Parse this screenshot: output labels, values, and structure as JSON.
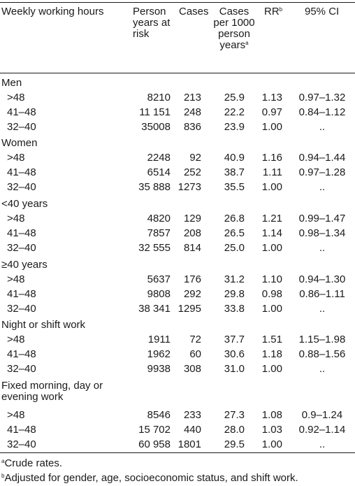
{
  "header": {
    "col1": "Weekly working hours",
    "col2": "Person years at risk",
    "col3": "Cases",
    "col4": "Cases per 1000 person years",
    "col4_note": "a",
    "col5": "RR",
    "col5_note": "b",
    "col6": "95% CI"
  },
  "groups": [
    {
      "title": "Men",
      "rows": [
        {
          "hours": ">48",
          "py": "8210",
          "cases": "213",
          "rate": "25.9",
          "rr": "1.13",
          "ci": "0.97–1.32"
        },
        {
          "hours": "41–48",
          "py": "11 151",
          "cases": "248",
          "rate": "22.2",
          "rr": "0.97",
          "ci": "0.84–1.12"
        },
        {
          "hours": "32–40",
          "py": "35008",
          "cases": "836",
          "rate": "23.9",
          "rr": "1.00",
          "ci": ".."
        }
      ]
    },
    {
      "title": "Women",
      "rows": [
        {
          "hours": ">48",
          "py": "2248",
          "cases": "92",
          "rate": "40.9",
          "rr": "1.16",
          "ci": "0.94–1.44"
        },
        {
          "hours": "41–48",
          "py": "6514",
          "cases": "252",
          "rate": "38.7",
          "rr": "1.11",
          "ci": "0.97–1.28"
        },
        {
          "hours": "32–40",
          "py": "35 888",
          "cases": "1273",
          "rate": "35.5",
          "rr": "1.00",
          "ci": ".."
        }
      ]
    },
    {
      "title": "<40 years",
      "rows": [
        {
          "hours": ">48",
          "py": "4820",
          "cases": "129",
          "rate": "26.8",
          "rr": "1.21",
          "ci": "0.99–1.47"
        },
        {
          "hours": "41–48",
          "py": "7857",
          "cases": "208",
          "rate": "26.5",
          "rr": "1.14",
          "ci": "0.98–1.34"
        },
        {
          "hours": "32–40",
          "py": "32 555",
          "cases": "814",
          "rate": "25.0",
          "rr": "1.00",
          "ci": ".."
        }
      ]
    },
    {
      "title": "≥40 years",
      "rows": [
        {
          "hours": ">48",
          "py": "5637",
          "cases": "176",
          "rate": "31.2",
          "rr": "1.10",
          "ci": "0.94–1.30"
        },
        {
          "hours": "41–48",
          "py": "9808",
          "cases": "292",
          "rate": "29.8",
          "rr": "0.98",
          "ci": "0.86–1.11"
        },
        {
          "hours": "32–40",
          "py": "38 341",
          "cases": "1295",
          "rate": "33.8",
          "rr": "1.00",
          "ci": ".."
        }
      ]
    },
    {
      "title": "Night or shift work",
      "rows": [
        {
          "hours": ">48",
          "py": "1911",
          "cases": "72",
          "rate": "37.7",
          "rr": "1.51",
          "ci": "1.15–1.98"
        },
        {
          "hours": "41–48",
          "py": "1962",
          "cases": "60",
          "rate": "30.6",
          "rr": "1.18",
          "ci": "0.88–1.56"
        },
        {
          "hours": "32–40",
          "py": "9938",
          "cases": "308",
          "rate": "31.0",
          "rr": "1.00",
          "ci": ".."
        }
      ]
    },
    {
      "title": "Fixed morning, day or evening work",
      "rows": [
        {
          "hours": ">48",
          "py": "8546",
          "cases": "233",
          "rate": "27.3",
          "rr": "1.08",
          "ci": "0.9–1.24"
        },
        {
          "hours": "41–48",
          "py": "15 702",
          "cases": "440",
          "rate": "28.0",
          "rr": "1.03",
          "ci": "0.92–1.14"
        },
        {
          "hours": "32–40",
          "py": "60 958",
          "cases": "1801",
          "rate": "29.5",
          "rr": "1.00",
          "ci": ".."
        }
      ]
    }
  ],
  "footnotes": [
    {
      "mark": "a",
      "text": "Crude rates."
    },
    {
      "mark": "b",
      "text": "Adjusted for gender, age, socioeconomic status, and shift work."
    }
  ]
}
